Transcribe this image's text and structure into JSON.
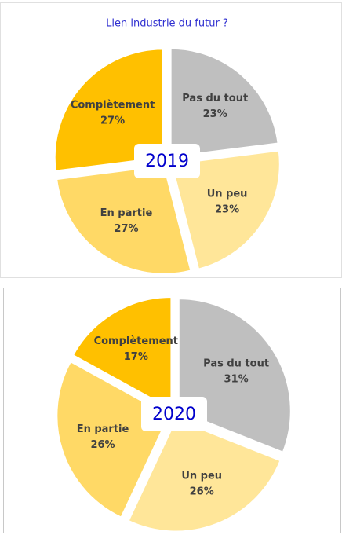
{
  "chart_data": [
    {
      "type": "pie",
      "title": "Lien industrie du futur ?",
      "annotation": "2019",
      "categories": [
        "Pas du tout",
        "Un peu",
        "En partie",
        "Complètement"
      ],
      "values": [
        23,
        23,
        27,
        27
      ],
      "value_labels": [
        "23%",
        "23%",
        "27%",
        "27%"
      ],
      "colors": [
        "#bfbfbf",
        "#ffe699",
        "#ffd966",
        "#ffc000"
      ]
    },
    {
      "type": "pie",
      "annotation": "2020",
      "categories": [
        "Pas du tout",
        "Un peu",
        "En partie",
        "Complètement"
      ],
      "values": [
        31,
        26,
        26,
        17
      ],
      "value_labels": [
        "31%",
        "26%",
        "26%",
        "17%"
      ],
      "colors": [
        "#bfbfbf",
        "#ffe699",
        "#ffd966",
        "#ffc000"
      ]
    }
  ]
}
